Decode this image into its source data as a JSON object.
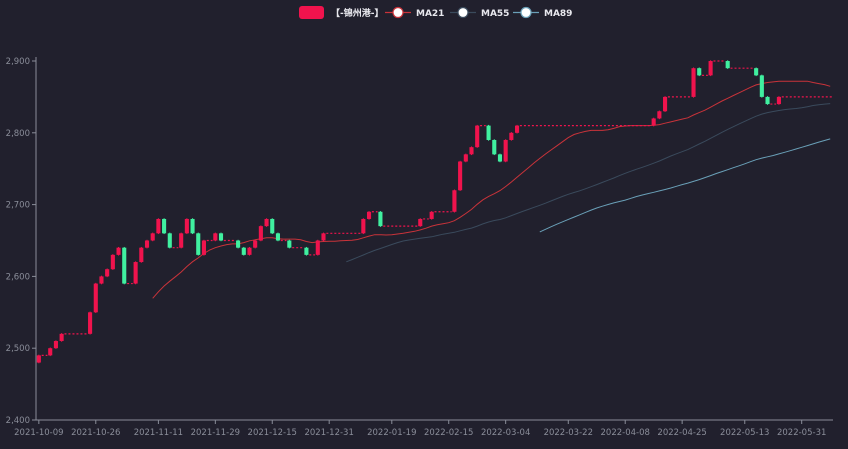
{
  "chart_data": {
    "type": "candlestick",
    "legend": [
      "【-锦州港-】",
      "MA21",
      "MA55",
      "MA89"
    ],
    "colors": {
      "background": "#21202d",
      "up": "#f0134d",
      "down": "#40f0a0",
      "ma21": "#c9333a",
      "ma55": "#3a4a5c",
      "ma89": "#6aa0b8",
      "axis": "#8a8d99",
      "legend_marker": "#f0134d"
    },
    "ylim": [
      2400,
      2900
    ],
    "yticks": [
      "2,400",
      "2,500",
      "2,600",
      "2,700",
      "2,800",
      "2,900"
    ],
    "xticks": [
      "2021-10-09",
      "2021-10-26",
      "2021-11-11",
      "2021-11-29",
      "2021-12-15",
      "2021-12-31",
      "2022-01-19",
      "2022-02-15",
      "2022-03-04",
      "2022-03-22",
      "2022-04-08",
      "2022-04-25",
      "2022-05-13",
      "2022-05-31"
    ],
    "candles": [
      [
        2480,
        2490,
        2479,
        2491
      ],
      [
        2490,
        2490,
        2489,
        2491
      ],
      [
        2490,
        2500,
        2489,
        2501
      ],
      [
        2500,
        2510,
        2499,
        2511
      ],
      [
        2510,
        2520,
        2509,
        2521
      ],
      [
        2520,
        2520,
        2519,
        2521
      ],
      [
        2520,
        2520,
        2519,
        2521
      ],
      [
        2520,
        2520,
        2519,
        2521
      ],
      [
        2520,
        2520,
        2519,
        2521
      ],
      [
        2520,
        2550,
        2519,
        2551
      ],
      [
        2550,
        2590,
        2549,
        2591
      ],
      [
        2590,
        2600,
        2589,
        2601
      ],
      [
        2600,
        2610,
        2599,
        2611
      ],
      [
        2610,
        2630,
        2609,
        2631
      ],
      [
        2630,
        2640,
        2629,
        2641
      ],
      [
        2640,
        2590,
        2589,
        2641
      ],
      [
        2590,
        2590,
        2589,
        2591
      ],
      [
        2590,
        2620,
        2589,
        2621
      ],
      [
        2620,
        2640,
        2619,
        2641
      ],
      [
        2640,
        2650,
        2639,
        2651
      ],
      [
        2650,
        2660,
        2649,
        2661
      ],
      [
        2660,
        2680,
        2659,
        2681
      ],
      [
        2680,
        2660,
        2659,
        2681
      ],
      [
        2660,
        2640,
        2639,
        2661
      ],
      [
        2640,
        2640,
        2639,
        2641
      ],
      [
        2640,
        2660,
        2639,
        2661
      ],
      [
        2660,
        2680,
        2659,
        2681
      ],
      [
        2680,
        2660,
        2659,
        2681
      ],
      [
        2660,
        2630,
        2629,
        2661
      ],
      [
        2630,
        2650,
        2629,
        2651
      ],
      [
        2650,
        2650,
        2649,
        2651
      ],
      [
        2650,
        2660,
        2649,
        2661
      ],
      [
        2660,
        2650,
        2649,
        2661
      ],
      [
        2650,
        2650,
        2649,
        2651
      ],
      [
        2650,
        2650,
        2649,
        2651
      ],
      [
        2650,
        2640,
        2639,
        2651
      ],
      [
        2640,
        2630,
        2629,
        2641
      ],
      [
        2630,
        2640,
        2629,
        2641
      ],
      [
        2640,
        2650,
        2639,
        2651
      ],
      [
        2650,
        2670,
        2649,
        2671
      ],
      [
        2670,
        2680,
        2669,
        2681
      ],
      [
        2680,
        2660,
        2659,
        2681
      ],
      [
        2660,
        2650,
        2649,
        2661
      ],
      [
        2650,
        2650,
        2649,
        2651
      ],
      [
        2650,
        2640,
        2639,
        2651
      ],
      [
        2640,
        2640,
        2639,
        2641
      ],
      [
        2640,
        2640,
        2639,
        2641
      ],
      [
        2640,
        2630,
        2629,
        2641
      ],
      [
        2630,
        2630,
        2629,
        2631
      ],
      [
        2630,
        2650,
        2629,
        2651
      ],
      [
        2650,
        2660,
        2649,
        2661
      ],
      [
        2660,
        2660,
        2659,
        2661
      ],
      [
        2660,
        2660,
        2659,
        2661
      ],
      [
        2660,
        2660,
        2659,
        2661
      ],
      [
        2660,
        2660,
        2659,
        2661
      ],
      [
        2660,
        2660,
        2659,
        2661
      ],
      [
        2660,
        2660,
        2659,
        2661
      ],
      [
        2660,
        2680,
        2659,
        2681
      ],
      [
        2680,
        2690,
        2679,
        2691
      ],
      [
        2690,
        2690,
        2689,
        2691
      ],
      [
        2690,
        2670,
        2669,
        2691
      ],
      [
        2670,
        2670,
        2669,
        2671
      ],
      [
        2670,
        2670,
        2669,
        2671
      ],
      [
        2670,
        2670,
        2669,
        2671
      ],
      [
        2670,
        2670,
        2669,
        2671
      ],
      [
        2670,
        2670,
        2669,
        2671
      ],
      [
        2670,
        2670,
        2669,
        2671
      ],
      [
        2670,
        2680,
        2669,
        2681
      ],
      [
        2680,
        2680,
        2679,
        2681
      ],
      [
        2680,
        2690,
        2679,
        2691
      ],
      [
        2690,
        2690,
        2689,
        2691
      ],
      [
        2690,
        2690,
        2689,
        2691
      ],
      [
        2690,
        2690,
        2689,
        2691
      ],
      [
        2690,
        2720,
        2689,
        2721
      ],
      [
        2720,
        2760,
        2719,
        2761
      ],
      [
        2760,
        2770,
        2759,
        2771
      ],
      [
        2770,
        2780,
        2769,
        2781
      ],
      [
        2780,
        2810,
        2779,
        2811
      ],
      [
        2810,
        2810,
        2809,
        2811
      ],
      [
        2810,
        2790,
        2789,
        2811
      ],
      [
        2790,
        2770,
        2769,
        2791
      ],
      [
        2770,
        2760,
        2759,
        2771
      ],
      [
        2760,
        2790,
        2759,
        2791
      ],
      [
        2790,
        2800,
        2789,
        2801
      ],
      [
        2800,
        2810,
        2799,
        2811
      ],
      [
        2810,
        2810,
        2809,
        2811
      ],
      [
        2810,
        2810,
        2809,
        2811
      ],
      [
        2810,
        2810,
        2809,
        2811
      ],
      [
        2810,
        2810,
        2809,
        2811
      ],
      [
        2810,
        2810,
        2809,
        2811
      ],
      [
        2810,
        2810,
        2809,
        2811
      ],
      [
        2810,
        2810,
        2809,
        2811
      ],
      [
        2810,
        2810,
        2809,
        2811
      ],
      [
        2810,
        2810,
        2809,
        2811
      ],
      [
        2810,
        2810,
        2809,
        2811
      ],
      [
        2810,
        2810,
        2809,
        2811
      ],
      [
        2810,
        2810,
        2809,
        2811
      ],
      [
        2810,
        2810,
        2809,
        2811
      ],
      [
        2810,
        2810,
        2809,
        2811
      ],
      [
        2810,
        2810,
        2809,
        2811
      ],
      [
        2810,
        2810,
        2809,
        2811
      ],
      [
        2810,
        2810,
        2809,
        2811
      ],
      [
        2810,
        2810,
        2809,
        2811
      ],
      [
        2810,
        2810,
        2809,
        2811
      ],
      [
        2810,
        2810,
        2809,
        2811
      ],
      [
        2810,
        2810,
        2809,
        2811
      ],
      [
        2810,
        2810,
        2809,
        2811
      ],
      [
        2810,
        2810,
        2809,
        2811
      ],
      [
        2810,
        2820,
        2809,
        2821
      ],
      [
        2820,
        2830,
        2819,
        2831
      ],
      [
        2830,
        2850,
        2829,
        2851
      ],
      [
        2850,
        2850,
        2849,
        2851
      ],
      [
        2850,
        2850,
        2849,
        2851
      ],
      [
        2850,
        2850,
        2849,
        2851
      ],
      [
        2850,
        2850,
        2849,
        2851
      ],
      [
        2850,
        2890,
        2849,
        2891
      ],
      [
        2890,
        2880,
        2879,
        2891
      ],
      [
        2880,
        2880,
        2879,
        2881
      ],
      [
        2880,
        2900,
        2879,
        2901
      ],
      [
        2900,
        2900,
        2899,
        2901
      ],
      [
        2900,
        2900,
        2899,
        2901
      ],
      [
        2900,
        2890,
        2889,
        2901
      ],
      [
        2890,
        2890,
        2889,
        2891
      ],
      [
        2890,
        2890,
        2889,
        2891
      ],
      [
        2890,
        2890,
        2889,
        2891
      ],
      [
        2890,
        2890,
        2889,
        2891
      ],
      [
        2890,
        2880,
        2879,
        2891
      ],
      [
        2880,
        2850,
        2849,
        2881
      ],
      [
        2850,
        2840,
        2839,
        2851
      ],
      [
        2840,
        2840,
        2839,
        2841
      ],
      [
        2840,
        2850,
        2839,
        2851
      ],
      [
        2850,
        2850,
        2849,
        2851
      ],
      [
        2850,
        2850,
        2849,
        2851
      ],
      [
        2850,
        2850,
        2849,
        2851
      ],
      [
        2850,
        2850,
        2849,
        2851
      ],
      [
        2850,
        2850,
        2849,
        2851
      ],
      [
        2850,
        2850,
        2849,
        2851
      ],
      [
        2850,
        2850,
        2849,
        2851
      ],
      [
        2850,
        2850,
        2849,
        2851
      ],
      [
        2850,
        2850,
        2849,
        2851
      ]
    ]
  }
}
